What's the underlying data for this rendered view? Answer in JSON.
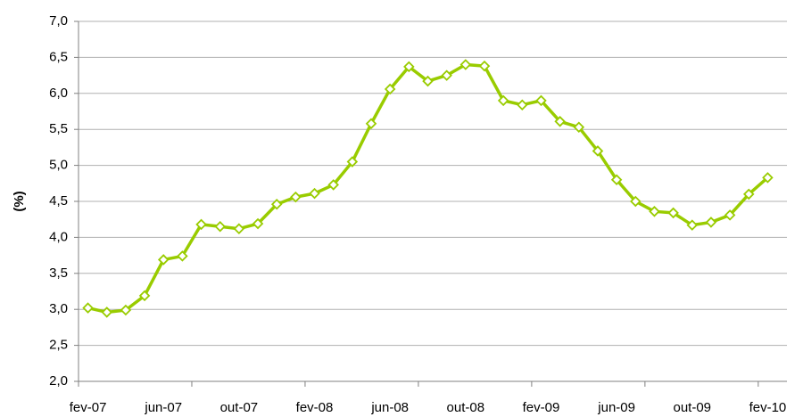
{
  "chart_data": {
    "type": "line",
    "y_label": "(%)",
    "categories": [
      "fev-07",
      null,
      null,
      null,
      "jun-07",
      null,
      null,
      null,
      "out-07",
      null,
      null,
      null,
      "fev-08",
      null,
      null,
      null,
      "jun-08",
      null,
      null,
      null,
      "out-08",
      null,
      null,
      null,
      "fev-09",
      null,
      null,
      null,
      "jun-09",
      null,
      null,
      null,
      "out-09",
      null,
      null,
      null,
      "fev-10"
    ],
    "series": [
      {
        "name": "(%)",
        "color": "#99cc00",
        "values": [
          3.02,
          2.96,
          2.99,
          3.19,
          3.69,
          3.74,
          4.18,
          4.15,
          4.12,
          4.19,
          4.46,
          4.56,
          4.61,
          4.73,
          5.05,
          5.58,
          6.06,
          6.37,
          6.17,
          6.25,
          6.4,
          6.38,
          5.9,
          5.84,
          5.9,
          5.61,
          5.53,
          5.2,
          4.8,
          4.5,
          4.36,
          4.34,
          4.17,
          4.21,
          4.31,
          4.6,
          4.83
        ]
      }
    ],
    "ylim": [
      2,
      7
    ],
    "yticks": [
      {
        "value": 2,
        "label": "2,0"
      },
      {
        "value": 2.5,
        "label": "2,5"
      },
      {
        "value": 3,
        "label": "3,0"
      },
      {
        "value": 3.5,
        "label": "3,5"
      },
      {
        "value": 4,
        "label": "4,0"
      },
      {
        "value": 4.5,
        "label": "4,5"
      },
      {
        "value": 5,
        "label": "5,0"
      },
      {
        "value": 5.5,
        "label": "5,5"
      },
      {
        "value": 6,
        "label": "6,0"
      },
      {
        "value": 6.5,
        "label": "6,5"
      },
      {
        "value": 7,
        "label": "7,0"
      }
    ],
    "grid": true
  }
}
